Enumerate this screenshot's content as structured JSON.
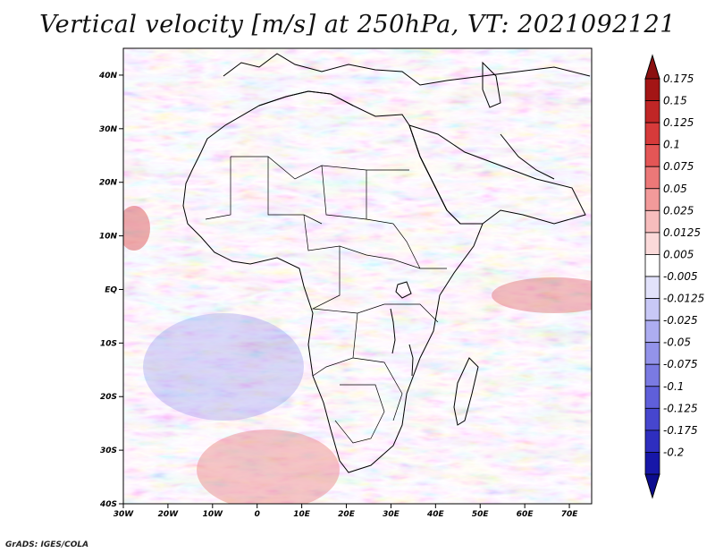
{
  "title": "Vertical velocity [m/s] at 250hPa, VT: 2021092121",
  "credit": "GrADS: IGES/COLA",
  "map": {
    "region": "Africa",
    "lon_range": [
      -30,
      75
    ],
    "lat_range": [
      -40,
      45
    ],
    "lon_ticks": [
      "30W",
      "20W",
      "10W",
      "0",
      "10E",
      "20E",
      "30E",
      "40E",
      "50E",
      "60E",
      "70E"
    ],
    "lat_ticks": [
      "40N",
      "30N",
      "20N",
      "10N",
      "EQ",
      "10S",
      "20S",
      "30S",
      "40S"
    ]
  },
  "colorbar": {
    "labels": [
      "0.175",
      "0.15",
      "0.125",
      "0.1",
      "0.075",
      "0.05",
      "0.025",
      "0.0125",
      "0.005",
      "-0.005",
      "-0.0125",
      "-0.025",
      "-0.05",
      "-0.075",
      "-0.1",
      "-0.125",
      "-0.175",
      "-0.2"
    ],
    "colors": [
      "#a31515",
      "#c02626",
      "#d63a3a",
      "#e45656",
      "#ec7878",
      "#f29a9a",
      "#f7bdbd",
      "#fbdada",
      "#ffffff",
      "#e2e2fb",
      "#c8c8f6",
      "#adadf1",
      "#9393ea",
      "#7a7ae2",
      "#5f5fda",
      "#4646ce",
      "#2e2ebf",
      "#1717a8"
    ],
    "top_arrow_color": "#8b1010",
    "bottom_arrow_color": "#0c0c8f"
  }
}
